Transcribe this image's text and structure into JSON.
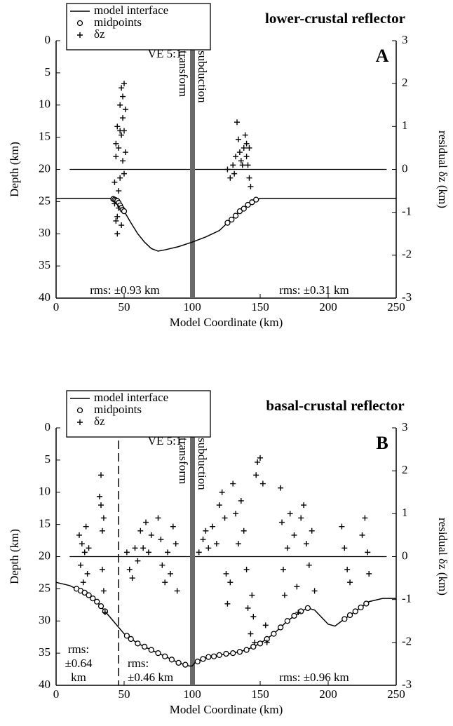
{
  "chart_data": [
    {
      "type": "combo",
      "title": "lower-crustal reflector",
      "panel": "A",
      "ve": "VE 5:1",
      "x_label": "Model Coordinate (km)",
      "y_label": "Depth (km)",
      "y2_label": "residual δz (km)",
      "xlim": [
        0,
        250
      ],
      "xticks": [
        0,
        50,
        100,
        150,
        200,
        250
      ],
      "ylim": [
        0,
        40
      ],
      "yticks": [
        0,
        5,
        10,
        15,
        20,
        25,
        30,
        35,
        40
      ],
      "y_reversed": true,
      "y2lim": [
        -3,
        3
      ],
      "y2ticks": [
        3,
        2,
        1,
        0,
        -1,
        -2,
        -3
      ],
      "reference_line": 0,
      "boundary": 100,
      "boundary_labels": [
        "transform",
        "subduction"
      ],
      "rms_labels": [
        [
          "rms: ±0.93 km"
        ],
        [
          "rms: ±0.31 km"
        ]
      ],
      "series": [
        {
          "name": "model interface",
          "marker": "line",
          "color": "#000000",
          "x": [
            0,
            40,
            45,
            50,
            55,
            60,
            65,
            70,
            75,
            80,
            90,
            100,
            110,
            120,
            125,
            130,
            135,
            140,
            145,
            150,
            160,
            200,
            250
          ],
          "values": [
            24.5,
            24.5,
            25,
            26.5,
            28.3,
            30,
            31.3,
            32.3,
            32.7,
            32.5,
            32,
            31.3,
            30.5,
            29.5,
            28.5,
            27.5,
            26.5,
            25.7,
            25,
            24.5,
            24.5,
            24.5,
            24.5
          ]
        },
        {
          "name": "midpoints",
          "marker": "circle",
          "color": "#000000",
          "x": [
            42,
            43,
            44,
            45,
            46,
            47,
            48,
            49,
            50,
            126,
            129,
            132,
            135,
            138,
            141,
            144,
            147
          ],
          "values": [
            24.6,
            24.7,
            24.8,
            24.9,
            25.2,
            25.6,
            26,
            26.3,
            26.5,
            28.3,
            27.8,
            27.2,
            26.5,
            26.1,
            25.5,
            25.1,
            24.7
          ]
        },
        {
          "name": "δz",
          "marker": "plus",
          "color": "#000000",
          "axis": "y2",
          "x": [
            43,
            44,
            45,
            44,
            45,
            46,
            46,
            47,
            47,
            48,
            48,
            48,
            49,
            49,
            49,
            50,
            50,
            50,
            51,
            51,
            45,
            43,
            44,
            46,
            47,
            126,
            128,
            130,
            132,
            133,
            134,
            135,
            136,
            138,
            139,
            140,
            141,
            142,
            143,
            142,
            137,
            131,
            140
          ],
          "values": [
            -0.8,
            -1.2,
            -1.5,
            0.3,
            1.0,
            -0.5,
            0.5,
            1.5,
            -0.2,
            1.9,
            0.8,
            -1.3,
            1.2,
            0.2,
            1.7,
            2.0,
            0.9,
            -0.1,
            0.4,
            1.4,
            -1.1,
            -0.3,
            0.6,
            -0.9,
            0.9,
            0,
            -0.2,
            0.1,
            0.3,
            1.1,
            0.7,
            0.4,
            0.2,
            0.5,
            0.8,
            0.3,
            0.1,
            -0.2,
            -0.4,
            0.5,
            0.1,
            -0.1,
            0.6
          ]
        }
      ]
    },
    {
      "type": "combo",
      "title": "basal-crustal reflector",
      "panel": "B",
      "ve": "VE 5:1",
      "x_label": "Model Coordinate (km)",
      "y_label": "Depth (km)",
      "y2_label": "residual δz (km)",
      "xlim": [
        0,
        250
      ],
      "xticks": [
        0,
        50,
        100,
        150,
        200,
        250
      ],
      "ylim": [
        0,
        40
      ],
      "yticks": [
        0,
        5,
        10,
        15,
        20,
        25,
        30,
        35,
        40
      ],
      "y_reversed": true,
      "y2lim": [
        -3,
        3
      ],
      "y2ticks": [
        3,
        2,
        1,
        0,
        -1,
        -2,
        -3
      ],
      "reference_line": 0,
      "boundary": 100,
      "boundary_labels": [
        "transform",
        "subduction"
      ],
      "divider": 46,
      "rms_labels": [
        [
          "rms:",
          "±0.64",
          "km"
        ],
        [
          "rms:",
          "±0.46 km"
        ],
        [
          "rms: ±0.96 km"
        ]
      ],
      "series": [
        {
          "name": "model interface",
          "marker": "line",
          "color": "#000000",
          "x": [
            0,
            10,
            20,
            30,
            40,
            50,
            60,
            70,
            80,
            90,
            98,
            100,
            102,
            110,
            120,
            130,
            140,
            150,
            160,
            170,
            180,
            185,
            190,
            200,
            205,
            210,
            220,
            230,
            240,
            250
          ],
          "values": [
            24,
            24.5,
            25.5,
            27,
            29.5,
            32,
            33.5,
            34.5,
            35.5,
            36.5,
            37,
            37,
            36.5,
            35.7,
            35.3,
            35,
            34.5,
            33.5,
            32,
            30,
            28.5,
            28,
            28.3,
            30.5,
            30.8,
            30,
            28.5,
            27,
            26.5,
            26.5
          ]
        },
        {
          "name": "midpoints",
          "marker": "circle",
          "color": "#000000",
          "x": [
            15,
            18,
            21,
            24,
            27,
            30,
            33,
            36,
            52,
            55,
            60,
            65,
            70,
            75,
            80,
            85,
            90,
            95,
            104,
            108,
            112,
            116,
            120,
            125,
            130,
            135,
            140,
            145,
            150,
            155,
            160,
            165,
            170,
            175,
            180,
            185,
            212,
            216,
            220,
            224,
            228
          ],
          "values": [
            25,
            25.3,
            25.6,
            26,
            26.5,
            27,
            27.7,
            28.5,
            32.3,
            32.8,
            33.5,
            34,
            34.5,
            35,
            35.5,
            36,
            36.5,
            36.8,
            36.3,
            35.9,
            35.6,
            35.5,
            35.3,
            35.1,
            35,
            34.8,
            34.5,
            34,
            33.5,
            32.8,
            32,
            31,
            30,
            29.2,
            28.5,
            28,
            29.7,
            29.1,
            28.5,
            27.9,
            27.3
          ]
        },
        {
          "name": "δz",
          "marker": "plus",
          "color": "#000000",
          "axis": "y2",
          "x": [
            17,
            18,
            19,
            20,
            21,
            22,
            23,
            24,
            33,
            33,
            34,
            34,
            35,
            36,
            32,
            35,
            52,
            54,
            56,
            58,
            60,
            62,
            64,
            66,
            68,
            70,
            75,
            77,
            78,
            80,
            82,
            84,
            86,
            88,
            89,
            105,
            108,
            110,
            112,
            115,
            118,
            120,
            122,
            124,
            125,
            126,
            128,
            130,
            132,
            134,
            136,
            138,
            140,
            141,
            143,
            145,
            147,
            148,
            150,
            152,
            146,
            144,
            154,
            155,
            165,
            166,
            167,
            168,
            170,
            172,
            175,
            177,
            178,
            180,
            182,
            184,
            186,
            188,
            190,
            210,
            212,
            214,
            216,
            225,
            227,
            229,
            230
          ],
          "values": [
            0.5,
            -0.2,
            0.3,
            -0.6,
            0.1,
            0.7,
            -0.4,
            0.2,
            1.9,
            1.2,
            0.6,
            -0.3,
            -0.8,
            -1.3,
            1.4,
            0.9,
            0.1,
            -0.3,
            -0.5,
            0.2,
            -0.1,
            0.6,
            0.2,
            0.8,
            0.1,
            0.5,
            0.9,
            0.4,
            -0.2,
            -0.6,
            0.1,
            -0.4,
            0.7,
            0.3,
            -0.8,
            0.1,
            0.4,
            0.6,
            0.2,
            0.7,
            0.3,
            1.2,
            1.5,
            0.9,
            -0.4,
            -1.1,
            -0.6,
            1.7,
            1.0,
            0.3,
            1.3,
            0.6,
            -0.3,
            -1.2,
            -1.8,
            -1.4,
            1.9,
            2.2,
            2.3,
            1.7,
            -2.0,
            -0.9,
            -1.6,
            -2.0,
            1.6,
            0.8,
            -0.3,
            -0.9,
            0.2,
            1.0,
            0.5,
            -0.7,
            -1.3,
            0.9,
            1.2,
            0.3,
            -0.2,
            0.6,
            -0.8,
            0.7,
            0.2,
            -0.3,
            -0.6,
            0.5,
            0.9,
            0.1,
            -0.4
          ]
        }
      ]
    }
  ]
}
